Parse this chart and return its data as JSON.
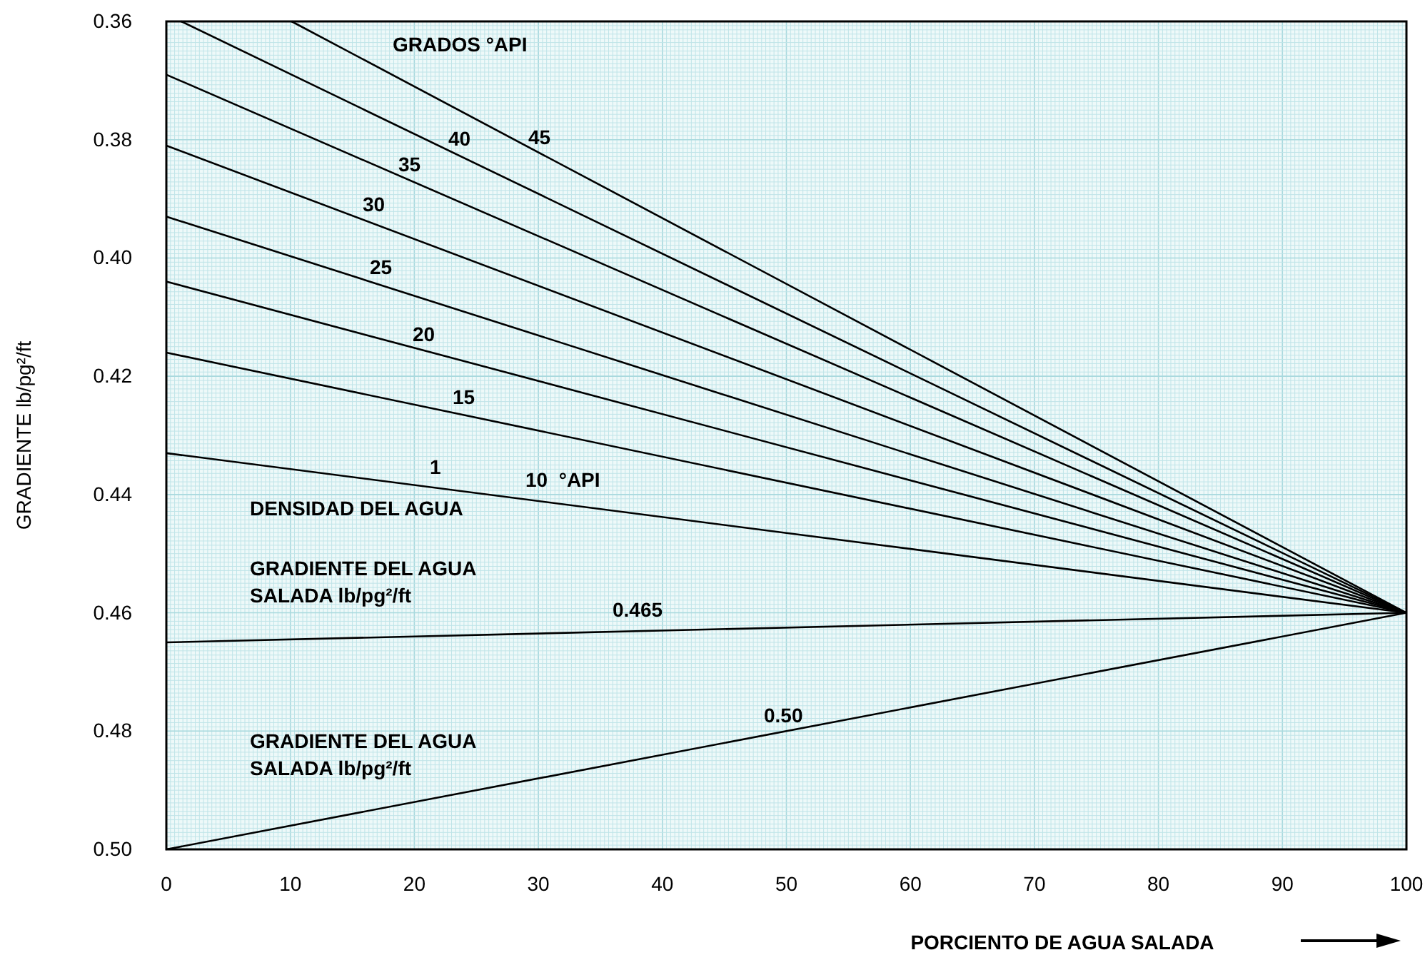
{
  "chart_data": {
    "type": "line",
    "xlabel": "PORCIENTO DE AGUA SALADA",
    "ylabel": "GRADIENTE lb/pg²/ft",
    "xlim": [
      0,
      100
    ],
    "xticks": [
      0,
      10,
      20,
      30,
      40,
      50,
      60,
      70,
      80,
      90,
      100
    ],
    "ylim": [
      0.5,
      0.36
    ],
    "yticks": [
      {
        "value": 0.36,
        "label": "0.36"
      },
      {
        "value": 0.38,
        "label": "0.38"
      },
      {
        "value": 0.4,
        "label": "0.40"
      },
      {
        "value": 0.42,
        "label": "0.42"
      },
      {
        "value": 0.44,
        "label": "0.44"
      },
      {
        "value": 0.46,
        "label": "0.46"
      },
      {
        "value": 0.48,
        "label": "0.48"
      },
      {
        "value": 0.5,
        "label": "0.50"
      }
    ],
    "grid": true,
    "series": [
      {
        "color": "#000000",
        "x": [
          10.1,
          100
        ],
        "values": [
          0.36,
          0.46
        ]
      },
      {
        "color": "#000000",
        "x": [
          1.2,
          100
        ],
        "values": [
          0.36,
          0.46
        ]
      },
      {
        "color": "#000000",
        "x": [
          0,
          100
        ],
        "values": [
          0.369,
          0.46
        ]
      },
      {
        "color": "#000000",
        "x": [
          0,
          100
        ],
        "values": [
          0.381,
          0.46
        ]
      },
      {
        "color": "#000000",
        "x": [
          0,
          100
        ],
        "values": [
          0.393,
          0.46
        ]
      },
      {
        "color": "#000000",
        "x": [
          0,
          100
        ],
        "values": [
          0.404,
          0.46
        ]
      },
      {
        "color": "#000000",
        "x": [
          0,
          100
        ],
        "values": [
          0.416,
          0.46
        ]
      },
      {
        "color": "#000000",
        "x": [
          0,
          100
        ],
        "values": [
          0.433,
          0.46
        ]
      },
      {
        "color": "#000000",
        "x": [
          0,
          100
        ],
        "values": [
          0.465,
          0.46
        ]
      },
      {
        "color": "#000000",
        "x": [
          0,
          100
        ],
        "values": [
          0.5,
          0.46
        ]
      }
    ],
    "annotations": [
      "GRADOS °API",
      "45",
      "40",
      "35",
      "30",
      "25",
      "20",
      "15",
      "1",
      "10  °API",
      "DENSIDAD DEL AGUA",
      "GRADIENTE DEL AGUA\nSALADA lb/pg²/ft",
      "0.465",
      "0.50",
      "GRADIENTE DEL AGUA\nSALADA lb/pg²/ft"
    ]
  }
}
